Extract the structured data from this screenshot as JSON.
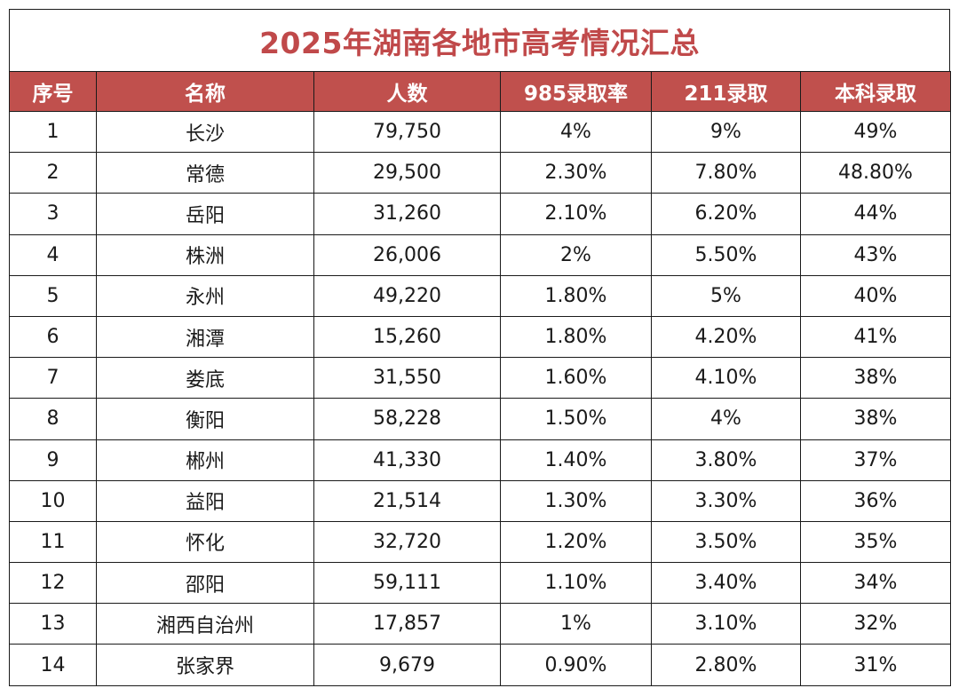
{
  "title": "2025年湖南各地市高考情况汇总",
  "colors": {
    "title": "#c0494a",
    "header_bg": "#c0504d",
    "header_text": "#ffffff"
  },
  "headers": [
    "序号",
    "名称",
    "人数",
    "985录取率",
    "211录取",
    "本科录取"
  ],
  "rows": [
    [
      "1",
      "长沙",
      "79,750",
      "4%",
      "9%",
      "49%"
    ],
    [
      "2",
      "常德",
      "29,500",
      "2.30%",
      "7.80%",
      "48.80%"
    ],
    [
      "3",
      "岳阳",
      "31,260",
      "2.10%",
      "6.20%",
      "44%"
    ],
    [
      "4",
      "株洲",
      "26,006",
      "2%",
      "5.50%",
      "43%"
    ],
    [
      "5",
      "永州",
      "49,220",
      "1.80%",
      "5%",
      "40%"
    ],
    [
      "6",
      "湘潭",
      "15,260",
      "1.80%",
      "4.20%",
      "41%"
    ],
    [
      "7",
      "娄底",
      "31,550",
      "1.60%",
      "4.10%",
      "38%"
    ],
    [
      "8",
      "衡阳",
      "58,228",
      "1.50%",
      "4%",
      "38%"
    ],
    [
      "9",
      "郴州",
      "41,330",
      "1.40%",
      "3.80%",
      "37%"
    ],
    [
      "10",
      "益阳",
      "21,514",
      "1.30%",
      "3.30%",
      "36%"
    ],
    [
      "11",
      "怀化",
      "32,720",
      "1.20%",
      "3.50%",
      "35%"
    ],
    [
      "12",
      "邵阳",
      "59,111",
      "1.10%",
      "3.40%",
      "34%"
    ],
    [
      "13",
      "湘西自治州",
      "17,857",
      "1%",
      "3.10%",
      "32%"
    ],
    [
      "14",
      "张家界",
      "9,679",
      "0.90%",
      "2.80%",
      "31%"
    ]
  ]
}
